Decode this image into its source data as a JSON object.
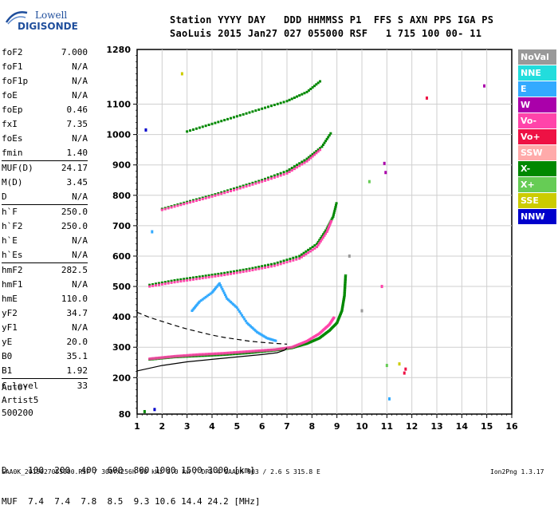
{
  "logo": {
    "line1": "Lowell",
    "line2": "DIGISONDE"
  },
  "header": {
    "line1": "Station YYYY DAY   DDD HHMMSS P1  FFS S AXN PPS IGA PS",
    "line2": "SaoLuis 2015 Jan27 027 055000 RSF   1 715 100 00- 11"
  },
  "params": [
    {
      "k": "foF2",
      "v": "7.000"
    },
    {
      "k": "foF1",
      "v": "N/A"
    },
    {
      "k": "foF1p",
      "v": "N/A"
    },
    {
      "k": "foE",
      "v": "N/A"
    },
    {
      "k": "foEp",
      "v": "0.46"
    },
    {
      "k": "fxI",
      "v": "7.35"
    },
    {
      "k": "foEs",
      "v": "N/A"
    },
    {
      "k": "fmin",
      "v": "1.40"
    },
    {
      "k": "MUF(D)",
      "v": "24.17"
    },
    {
      "k": "M(D)",
      "v": "3.45"
    },
    {
      "k": "D",
      "v": "N/A"
    },
    {
      "k": "h`F",
      "v": "250.0"
    },
    {
      "k": "h`F2",
      "v": "250.0"
    },
    {
      "k": "h`E",
      "v": "N/A"
    },
    {
      "k": "h`Es",
      "v": "N/A"
    },
    {
      "k": "hmF2",
      "v": "282.5"
    },
    {
      "k": "hmF1",
      "v": "N/A"
    },
    {
      "k": "hmE",
      "v": "110.0"
    },
    {
      "k": "yF2",
      "v": "34.7"
    },
    {
      "k": "yF1",
      "v": "N/A"
    },
    {
      "k": "yE",
      "v": "20.0"
    },
    {
      "k": "B0",
      "v": "35.1"
    },
    {
      "k": "B1",
      "v": "1.92"
    },
    {
      "k": "C-level",
      "v": "33"
    }
  ],
  "auto": {
    "line1": "Auto:",
    "line2": "Artist5",
    "line3": "500200"
  },
  "muf_table": {
    "line1": "D    100  200  400  600  800 1000 1500 3000 [km]",
    "line2": "MUF  7.4  7.4  7.8  8.5  9.3 10.6 14.4 24.2 [MHz]"
  },
  "footer": {
    "left": "SAA0K_2015027055000.RSF / 300fx256h 50 kHz 5.0 km / DPS-4 SAA0K 903 / 2.6 S 315.8 E",
    "right": "Ion2Png 1.3.17"
  },
  "legend": [
    {
      "label": "NoVal",
      "color": "#999999"
    },
    {
      "label": "NNE",
      "color": "#22dddd"
    },
    {
      "label": "E",
      "color": "#33aaff"
    },
    {
      "label": "W",
      "color": "#aa00aa"
    },
    {
      "label": "Vo-",
      "color": "#ff44aa"
    },
    {
      "label": "Vo+",
      "color": "#ee1144"
    },
    {
      "label": "SSW",
      "color": "#ffaaaa"
    },
    {
      "label": "X-",
      "color": "#008800"
    },
    {
      "label": "X+",
      "color": "#66cc55"
    },
    {
      "label": "SSE",
      "color": "#cccc00"
    },
    {
      "label": "NNW",
      "color": "#0000cc"
    }
  ],
  "chart_data": {
    "type": "scatter",
    "x_ticks": [
      1,
      2,
      3,
      4,
      5,
      6,
      7,
      8,
      9,
      10,
      11,
      12,
      13,
      14,
      15,
      16
    ],
    "y_ticks": [
      200,
      300,
      400,
      500,
      600,
      700,
      800,
      900,
      1000,
      1100
    ],
    "xlim": [
      1,
      16
    ],
    "ylim": [
      80,
      1280
    ],
    "y_end_labels": [
      "80",
      "1280"
    ],
    "grid": true,
    "traces": [
      {
        "name": "X-",
        "color": "#008800",
        "points": [
          [
            1.5,
            260
          ],
          [
            2.5,
            268
          ],
          [
            3.5,
            272
          ],
          [
            4.5,
            276
          ],
          [
            5.5,
            282
          ],
          [
            6.5,
            290
          ],
          [
            7.2,
            298
          ],
          [
            7.8,
            312
          ],
          [
            8.3,
            330
          ],
          [
            8.7,
            355
          ],
          [
            9.0,
            380
          ],
          [
            9.2,
            420
          ],
          [
            9.3,
            470
          ],
          [
            9.35,
            540
          ]
        ]
      },
      {
        "name": "Vo-",
        "color": "#ff44aa",
        "points": [
          [
            1.5,
            262
          ],
          [
            2.5,
            270
          ],
          [
            3.5,
            276
          ],
          [
            4.5,
            280
          ],
          [
            5.5,
            286
          ],
          [
            6.5,
            292
          ],
          [
            7.2,
            300
          ],
          [
            7.8,
            320
          ],
          [
            8.3,
            345
          ],
          [
            8.7,
            375
          ],
          [
            8.9,
            400
          ]
        ]
      },
      {
        "name": "X- 2-hop",
        "color": "#008800",
        "points": [
          [
            1.5,
            505
          ],
          [
            2.5,
            520
          ],
          [
            3.5,
            532
          ],
          [
            4.5,
            544
          ],
          [
            5.5,
            558
          ],
          [
            6.5,
            575
          ],
          [
            7.5,
            600
          ],
          [
            8.2,
            640
          ],
          [
            8.6,
            690
          ],
          [
            8.85,
            730
          ],
          [
            9.0,
            780
          ]
        ]
      },
      {
        "name": "Vo- 2-hop",
        "color": "#ff44aa",
        "points": [
          [
            1.5,
            500
          ],
          [
            2.5,
            514
          ],
          [
            3.5,
            526
          ],
          [
            4.5,
            538
          ],
          [
            5.5,
            552
          ],
          [
            6.5,
            568
          ],
          [
            7.5,
            592
          ],
          [
            8.2,
            630
          ],
          [
            8.6,
            680
          ],
          [
            8.8,
            720
          ]
        ]
      },
      {
        "name": "X- 3-hop",
        "color": "#008800",
        "points": [
          [
            2.0,
            755
          ],
          [
            3.0,
            778
          ],
          [
            4.0,
            800
          ],
          [
            5.0,
            825
          ],
          [
            6.0,
            850
          ],
          [
            7.0,
            880
          ],
          [
            7.8,
            920
          ],
          [
            8.4,
            960
          ],
          [
            8.8,
            1010
          ]
        ]
      },
      {
        "name": "Vo- 3-hop",
        "color": "#ff44aa",
        "points": [
          [
            2.0,
            752
          ],
          [
            3.0,
            774
          ],
          [
            4.0,
            796
          ],
          [
            5.0,
            820
          ],
          [
            6.0,
            845
          ],
          [
            7.0,
            872
          ],
          [
            7.8,
            912
          ],
          [
            8.4,
            955
          ]
        ]
      },
      {
        "name": "X- 4-hop",
        "color": "#008800",
        "points": [
          [
            3.0,
            1010
          ],
          [
            4.0,
            1035
          ],
          [
            5.0,
            1060
          ],
          [
            6.0,
            1085
          ],
          [
            7.0,
            1110
          ],
          [
            7.8,
            1140
          ],
          [
            8.4,
            1180
          ]
        ]
      },
      {
        "name": "E",
        "color": "#33aaff",
        "points": [
          [
            3.2,
            420
          ],
          [
            3.5,
            450
          ],
          [
            4.0,
            480
          ],
          [
            4.3,
            510
          ],
          [
            4.6,
            460
          ],
          [
            5.0,
            430
          ],
          [
            5.4,
            380
          ],
          [
            5.8,
            350
          ],
          [
            6.2,
            330
          ],
          [
            6.6,
            320
          ]
        ]
      }
    ],
    "profile_solid": [
      [
        1.0,
        222
      ],
      [
        2.0,
        240
      ],
      [
        3.0,
        252
      ],
      [
        4.0,
        260
      ],
      [
        5.0,
        268
      ],
      [
        6.0,
        276
      ],
      [
        6.6,
        282
      ],
      [
        6.9,
        290
      ],
      [
        7.0,
        298
      ]
    ],
    "profile_dashed": [
      [
        1.0,
        415
      ],
      [
        1.5,
        398
      ],
      [
        2.0,
        385
      ],
      [
        2.5,
        372
      ],
      [
        3.0,
        360
      ],
      [
        3.5,
        350
      ],
      [
        4.0,
        340
      ],
      [
        4.5,
        332
      ],
      [
        5.0,
        326
      ],
      [
        5.5,
        320
      ],
      [
        6.0,
        316
      ],
      [
        6.5,
        313
      ],
      [
        7.0,
        310
      ]
    ],
    "stray_points": [
      {
        "x": 1.35,
        "y": 1015,
        "color": "#0000cc"
      },
      {
        "x": 1.6,
        "y": 680,
        "color": "#33aaff"
      },
      {
        "x": 1.7,
        "y": 95,
        "color": "#0000cc"
      },
      {
        "x": 1.3,
        "y": 88,
        "color": "#008800"
      },
      {
        "x": 2.8,
        "y": 1200,
        "color": "#cccc00"
      },
      {
        "x": 9.5,
        "y": 600,
        "color": "#999999"
      },
      {
        "x": 10.0,
        "y": 420,
        "color": "#999999"
      },
      {
        "x": 10.3,
        "y": 845,
        "color": "#66cc55"
      },
      {
        "x": 10.9,
        "y": 905,
        "color": "#aa00aa"
      },
      {
        "x": 10.95,
        "y": 875,
        "color": "#aa00aa"
      },
      {
        "x": 11.0,
        "y": 240,
        "color": "#66cc55"
      },
      {
        "x": 11.1,
        "y": 130,
        "color": "#33aaff"
      },
      {
        "x": 11.5,
        "y": 245,
        "color": "#cccc00"
      },
      {
        "x": 11.7,
        "y": 215,
        "color": "#ee1144"
      },
      {
        "x": 11.75,
        "y": 228,
        "color": "#ee1144"
      },
      {
        "x": 12.6,
        "y": 1120,
        "color": "#ee1144"
      },
      {
        "x": 14.9,
        "y": 1160,
        "color": "#aa00aa"
      },
      {
        "x": 10.8,
        "y": 500,
        "color": "#ff44aa"
      }
    ]
  }
}
